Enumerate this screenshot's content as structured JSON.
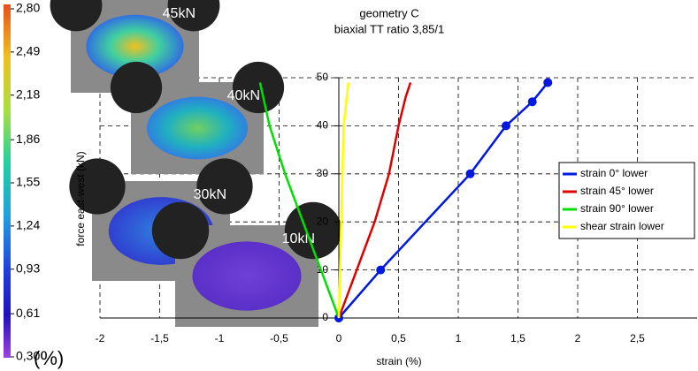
{
  "chart_data": {
    "type": "line",
    "title": "geometry C",
    "subtitle": "biaxial TT ratio 3,85/1",
    "x_label": "strain (%)",
    "y_label": "force east-west (kN)",
    "xlim": [
      -2,
      3
    ],
    "ylim": [
      0,
      50
    ],
    "xticks": [
      -2,
      {
        "value": -1.5,
        "label": "-1,5"
      },
      -1,
      {
        "value": -0.5,
        "label": "-0,5"
      },
      0,
      {
        "value": 0.5,
        "label": "0,5"
      },
      1,
      {
        "value": 1.5,
        "label": "1,5"
      },
      2,
      {
        "value": 2.5,
        "label": "2,5"
      }
    ],
    "yticks": [
      0,
      10,
      20,
      30,
      40,
      50
    ],
    "grid": true,
    "series": [
      {
        "name": "strain 0° lower",
        "color": "#0018e0",
        "markers": true,
        "x": [
          0,
          0.35,
          1.1,
          1.4,
          1.62,
          1.75
        ],
        "values": [
          0,
          10,
          30,
          40,
          45,
          49
        ]
      },
      {
        "name": "strain 45° lower",
        "color": "#e00000",
        "x": [
          0,
          0.15,
          0.3,
          0.42,
          0.5,
          0.56,
          0.6
        ],
        "values": [
          0,
          10,
          20,
          30,
          40,
          46,
          49
        ]
      },
      {
        "name": "strain 90° lower",
        "color": "#00e000",
        "x": [
          0,
          -0.15,
          -0.3,
          -0.45,
          -0.58,
          -0.66
        ],
        "values": [
          0,
          10,
          20,
          30,
          40,
          49
        ]
      },
      {
        "name": "shear strain lower",
        "color": "#ffff00",
        "x": [
          0,
          0.01,
          0.02,
          0.03,
          0.04,
          0.08
        ],
        "values": [
          0,
          10,
          20,
          30,
          40,
          49
        ]
      }
    ],
    "colorbar": {
      "lim": [
        0.3,
        2.8
      ],
      "unit": "(%)",
      "ticks": [
        {
          "value": 2.8,
          "label": "2,80"
        },
        {
          "value": 2.49,
          "label": "2,49"
        },
        {
          "value": 2.18,
          "label": "2,18"
        },
        {
          "value": 1.86,
          "label": "1,86"
        },
        {
          "value": 1.55,
          "label": "1,55"
        },
        {
          "value": 1.24,
          "label": "1,24"
        },
        {
          "value": 0.93,
          "label": "0,93"
        },
        {
          "value": 0.61,
          "label": "0,61"
        },
        {
          "value": 0.3,
          "label": "0,30"
        }
      ]
    },
    "snapshots": [
      {
        "label": "45kN"
      },
      {
        "label": "40kN"
      },
      {
        "label": "30kN"
      },
      {
        "label": "10kN"
      }
    ]
  }
}
